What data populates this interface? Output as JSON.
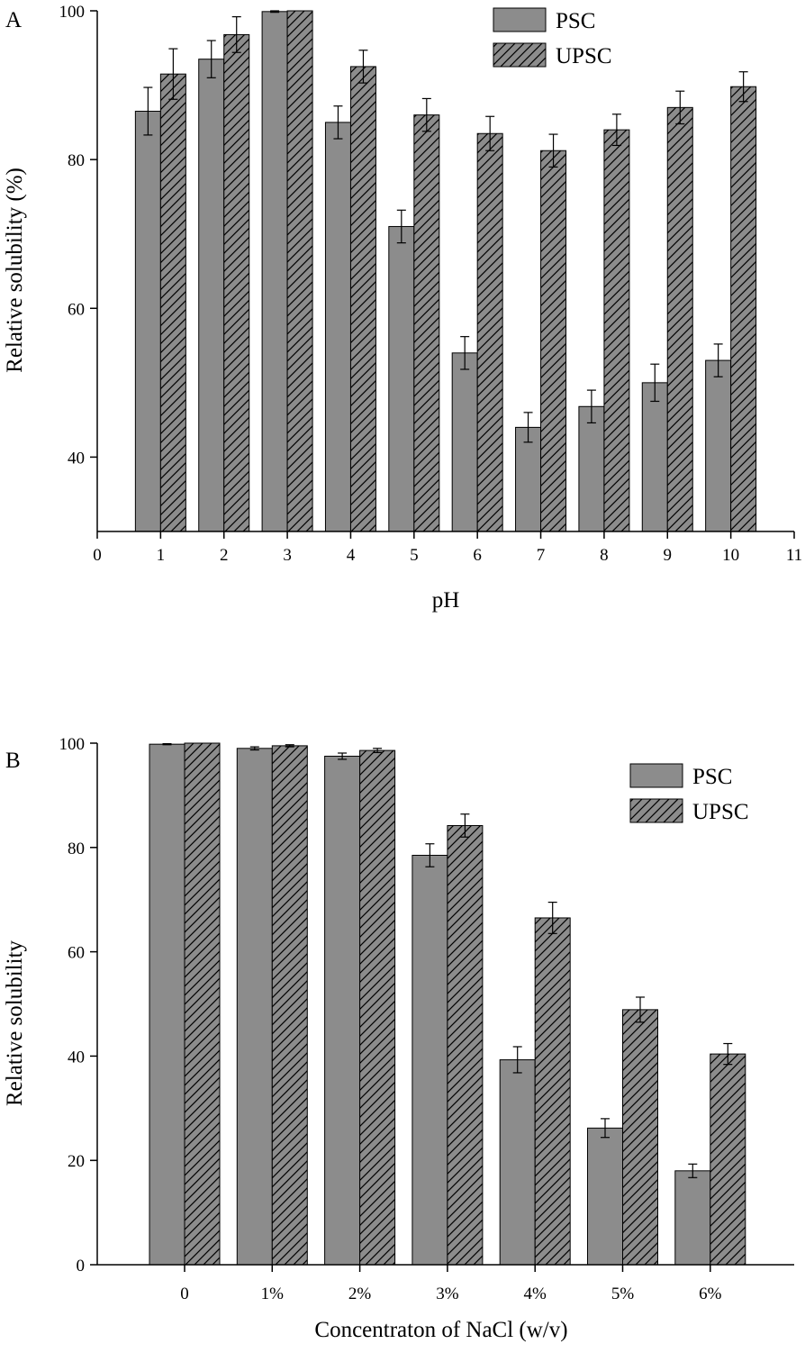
{
  "colors": {
    "psc_fill": "#8c8c8c",
    "upsc_fill": "#8c8c8c",
    "stroke": "#000000",
    "background": "#ffffff"
  },
  "chart_data": [
    {
      "type": "bar",
      "panel_label": "A",
      "title": "",
      "xlabel": "pH",
      "ylabel": "Relative solubility (%)",
      "xlim": [
        0,
        11
      ],
      "ylim": [
        30,
        100
      ],
      "xticks": [
        "0",
        "1",
        "2",
        "3",
        "4",
        "5",
        "6",
        "7",
        "8",
        "9",
        "10",
        "11"
      ],
      "yticks": [
        "40",
        "60",
        "80",
        "100"
      ],
      "ytick_values": [
        40,
        60,
        80,
        100
      ],
      "categories": [
        "1",
        "2",
        "3",
        "4",
        "5",
        "6",
        "7",
        "8",
        "9",
        "10"
      ],
      "category_x": [
        1,
        2,
        3,
        4,
        5,
        6,
        7,
        8,
        9,
        10
      ],
      "legend": {
        "position": "top-right",
        "entries": [
          "PSC",
          "UPSC"
        ]
      },
      "series": [
        {
          "name": "PSC",
          "pattern": "solid",
          "values": [
            86.5,
            93.5,
            99.9,
            85.0,
            71.0,
            54.0,
            44.0,
            46.8,
            50.0,
            53.0
          ],
          "errors": [
            3.2,
            2.5,
            0.1,
            2.2,
            2.2,
            2.2,
            2.0,
            2.2,
            2.5,
            2.2
          ]
        },
        {
          "name": "UPSC",
          "pattern": "hatched",
          "values": [
            91.5,
            96.8,
            100.0,
            92.5,
            86.0,
            83.5,
            81.2,
            84.0,
            87.0,
            89.8
          ],
          "errors": [
            3.4,
            2.4,
            0.0,
            2.2,
            2.2,
            2.3,
            2.2,
            2.1,
            2.2,
            2.0
          ]
        }
      ]
    },
    {
      "type": "bar",
      "panel_label": "B",
      "title": "",
      "xlabel": "Concentraton of NaCl (w/v)",
      "ylabel": "Relative solubility",
      "ylim": [
        0,
        100
      ],
      "yticks": [
        "0",
        "20",
        "40",
        "60",
        "80",
        "100"
      ],
      "ytick_values": [
        0,
        20,
        40,
        60,
        80,
        100
      ],
      "categories": [
        "0",
        "1%",
        "2%",
        "3%",
        "4%",
        "5%",
        "6%"
      ],
      "legend": {
        "position": "top-right",
        "entries": [
          "PSC",
          "UPSC"
        ]
      },
      "series": [
        {
          "name": "PSC",
          "pattern": "solid",
          "values": [
            99.8,
            99.0,
            97.5,
            78.5,
            39.3,
            26.2,
            18.0
          ],
          "errors": [
            0.1,
            0.3,
            0.6,
            2.2,
            2.5,
            1.8,
            1.3
          ]
        },
        {
          "name": "UPSC",
          "pattern": "hatched",
          "values": [
            100.0,
            99.5,
            98.6,
            84.2,
            66.5,
            48.9,
            40.4
          ],
          "errors": [
            0.0,
            0.2,
            0.4,
            2.2,
            3.0,
            2.4,
            2.0
          ]
        }
      ]
    }
  ]
}
